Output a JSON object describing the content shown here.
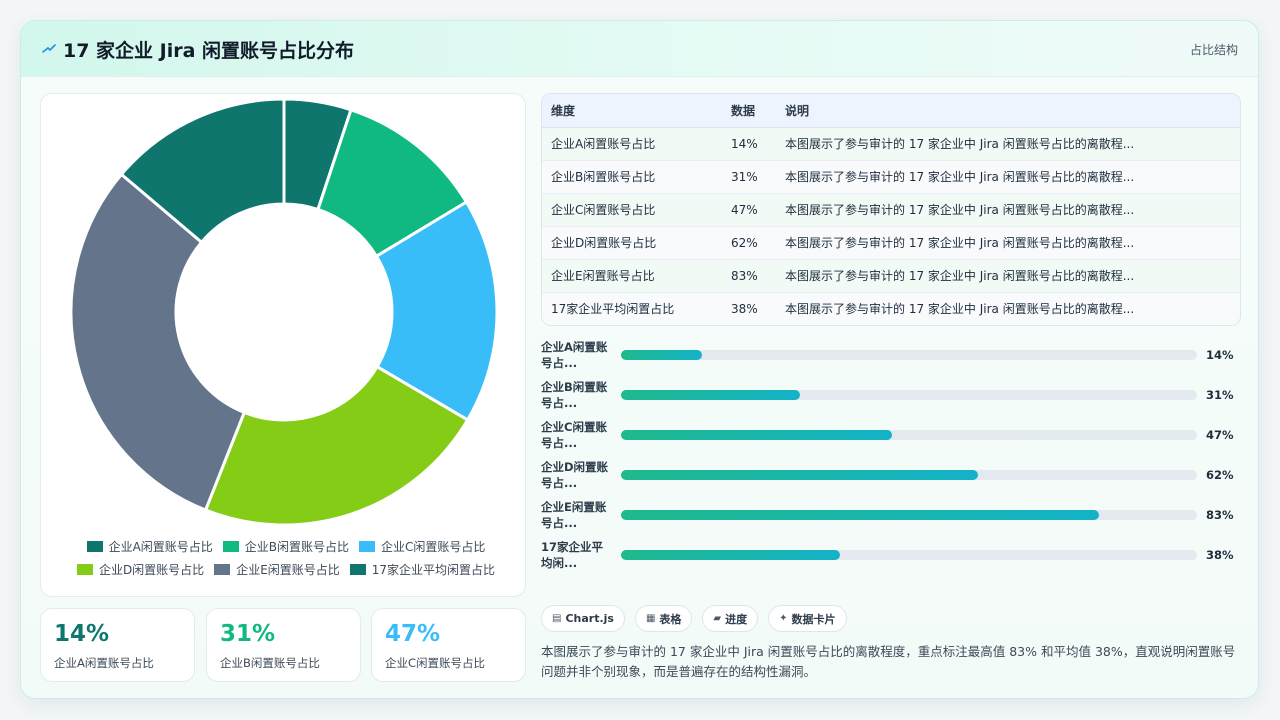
{
  "header": {
    "title": "17 家企业 Jira 闲置账号占比分布",
    "tag": "占比结构",
    "icon": "sparkle-icon"
  },
  "colors": {
    "slice": [
      "#0f766e",
      "#10b981",
      "#38bdf8",
      "#84cc16",
      "#64748b",
      "#0f766e"
    ],
    "stat": [
      "#0f766e",
      "#10b981",
      "#38bdf8"
    ]
  },
  "chart_data": {
    "type": "pie",
    "variant": "doughnut",
    "categories": [
      "企业A闲置账号占比",
      "企业B闲置账号占比",
      "企业C闲置账号占比",
      "企业D闲置账号占比",
      "企业E闲置账号占比",
      "17家企业平均闲置占比"
    ],
    "values": [
      14,
      31,
      47,
      62,
      83,
      38
    ],
    "unit": "%",
    "legend_position": "bottom"
  },
  "stats": [
    {
      "value": "14%",
      "label": "企业A闲置账号占比"
    },
    {
      "value": "31%",
      "label": "企业B闲置账号占比"
    },
    {
      "value": "47%",
      "label": "企业C闲置账号占比"
    }
  ],
  "table": {
    "headers": [
      "维度",
      "数据",
      "说明"
    ],
    "rows": [
      {
        "dim": "企业A闲置账号占比",
        "val": "14%",
        "note": "本图展示了参与审计的 17 家企业中 Jira 闲置账号占比的离散程..."
      },
      {
        "dim": "企业B闲置账号占比",
        "val": "31%",
        "note": "本图展示了参与审计的 17 家企业中 Jira 闲置账号占比的离散程..."
      },
      {
        "dim": "企业C闲置账号占比",
        "val": "47%",
        "note": "本图展示了参与审计的 17 家企业中 Jira 闲置账号占比的离散程..."
      },
      {
        "dim": "企业D闲置账号占比",
        "val": "62%",
        "note": "本图展示了参与审计的 17 家企业中 Jira 闲置账号占比的离散程..."
      },
      {
        "dim": "企业E闲置账号占比",
        "val": "83%",
        "note": "本图展示了参与审计的 17 家企业中 Jira 闲置账号占比的离散程..."
      },
      {
        "dim": "17家企业平均闲置占比",
        "val": "38%",
        "note": "本图展示了参与审计的 17 家企业中 Jira 闲置账号占比的离散程..."
      }
    ]
  },
  "progress": [
    {
      "label": "企业A闲置账号占...",
      "value": 14,
      "text": "14%"
    },
    {
      "label": "企业B闲置账号占...",
      "value": 31,
      "text": "31%"
    },
    {
      "label": "企业C闲置账号占...",
      "value": 47,
      "text": "47%"
    },
    {
      "label": "企业D闲置账号占...",
      "value": 62,
      "text": "62%"
    },
    {
      "label": "企业E闲置账号占...",
      "value": 83,
      "text": "83%"
    },
    {
      "label": "17家企业平均闲...",
      "value": 38,
      "text": "38%"
    }
  ],
  "chips": [
    {
      "icon": "▤",
      "label": "Chart.js"
    },
    {
      "icon": "▦",
      "label": "表格"
    },
    {
      "icon": "▰",
      "label": "进度"
    },
    {
      "icon": "✦",
      "label": "数据卡片"
    }
  ],
  "description": "本图展示了参与审计的 17 家企业中 Jira 闲置账号占比的离散程度，重点标注最高值 83% 和平均值 38%，直观说明闲置账号问题并非个别现象，而是普遍存在的结构性漏洞。"
}
